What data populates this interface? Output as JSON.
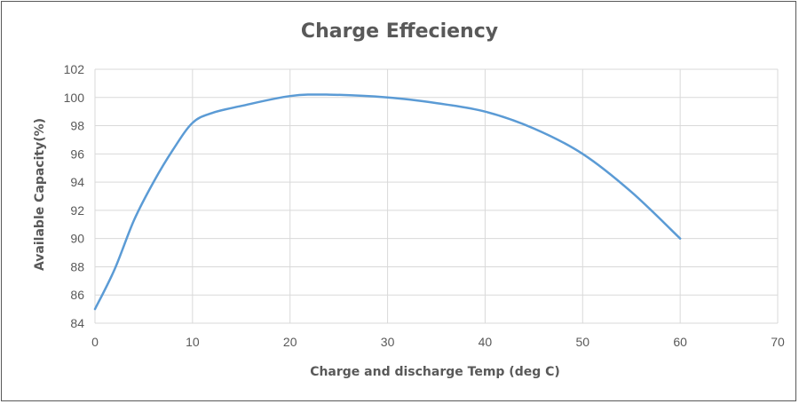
{
  "chart_data": {
    "type": "line",
    "title": "Charge Effeciency",
    "xlabel": "Charge and discharge Temp (deg C)",
    "ylabel": "Available Capacity(%)",
    "xlim": [
      0,
      70
    ],
    "ylim": [
      84,
      102
    ],
    "xticks": [
      0,
      10,
      20,
      30,
      40,
      50,
      60,
      70
    ],
    "yticks": [
      84,
      86,
      88,
      90,
      92,
      94,
      96,
      98,
      100,
      102
    ],
    "grid": true,
    "legend": "none",
    "series_color": "#5b9bd5",
    "series": [
      {
        "x": [
          0,
          2,
          4,
          6,
          8,
          10,
          12,
          15,
          20,
          24,
          30,
          35,
          40,
          45,
          50,
          55,
          60
        ],
        "y": [
          85,
          87.8,
          91.3,
          94,
          96.3,
          98.2,
          98.9,
          99.4,
          100.1,
          100.2,
          100,
          99.6,
          99,
          97.8,
          96,
          93.3,
          90
        ]
      }
    ]
  }
}
